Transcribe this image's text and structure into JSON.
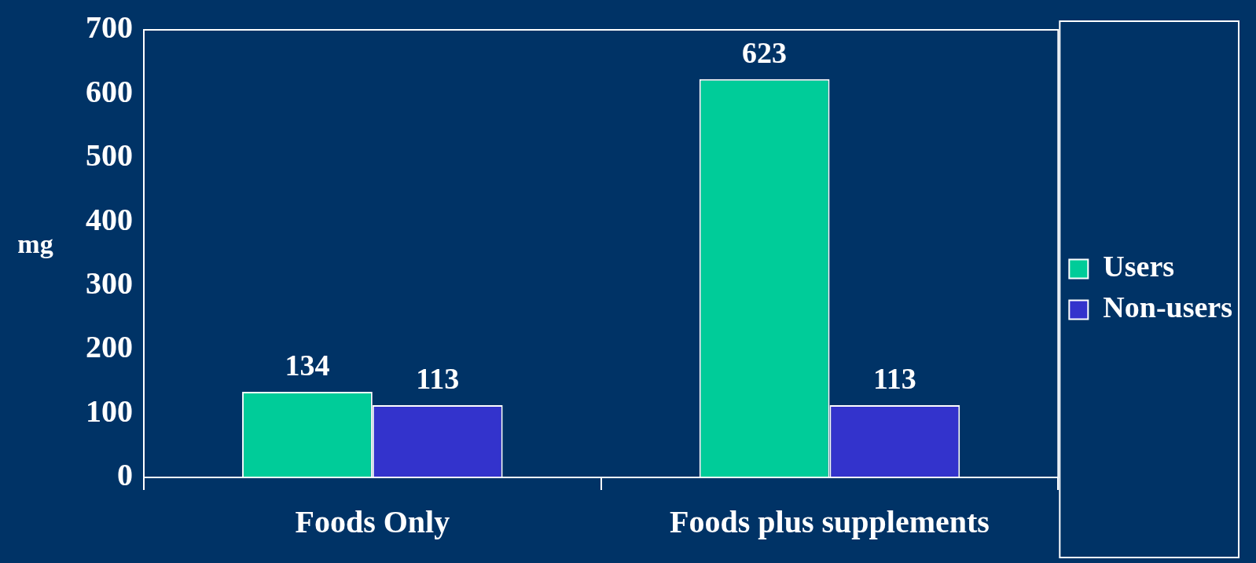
{
  "chart_data": {
    "type": "bar",
    "ylabel": "mg",
    "categories": [
      "Foods Only",
      "Foods plus supplements"
    ],
    "series": [
      {
        "name": "Users",
        "color": "#00cc99",
        "values": [
          134,
          623
        ]
      },
      {
        "name": "Non-users",
        "color": "#3333cc",
        "values": [
          113,
          113
        ]
      }
    ],
    "ylim": [
      0,
      700
    ],
    "yticks": [
      0,
      100,
      200,
      300,
      400,
      500,
      600,
      700
    ],
    "grid": false,
    "legend": "right",
    "data_labels": true
  }
}
